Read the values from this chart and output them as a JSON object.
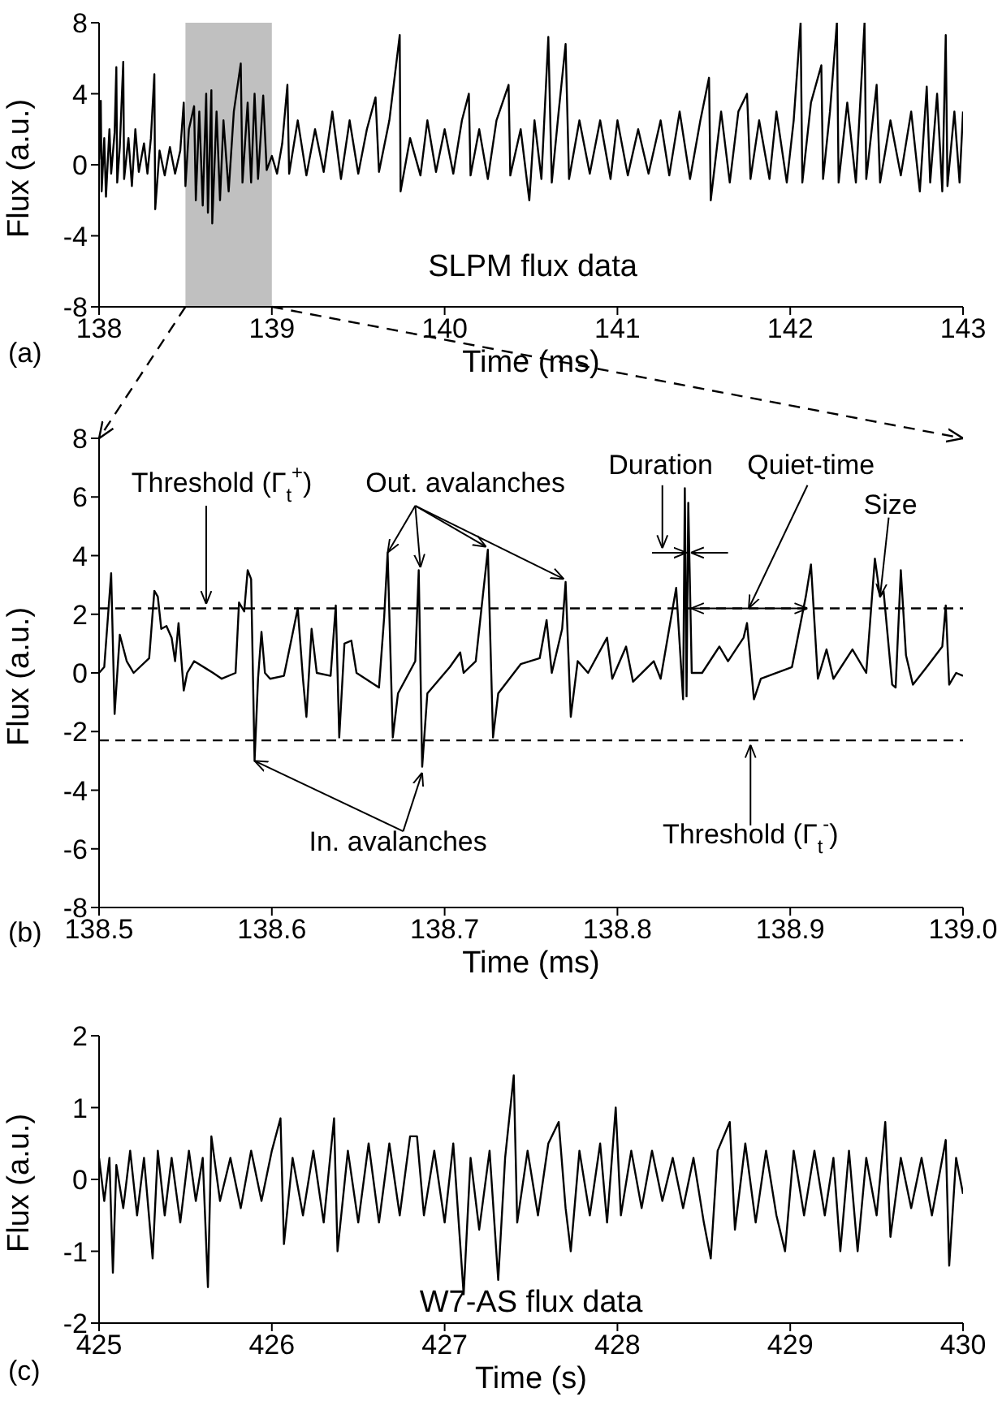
{
  "chart_data": [
    {
      "type": "line",
      "xlabel": "Time (ms)",
      "ylabel": "Flux (a.u.)",
      "color": "#000000",
      "xlim": [
        138,
        143
      ],
      "ylim": [
        -8,
        8
      ],
      "xticks": [
        138,
        139,
        140,
        141,
        142,
        143
      ],
      "yticks": [
        -8,
        -4,
        0,
        4,
        8
      ],
      "bands": [
        {
          "axis": "x",
          "from": 138.5,
          "to": 139.0,
          "color": "#c0c0c0"
        }
      ],
      "annotations": [
        "SLPM flux data",
        "(a)"
      ],
      "x": [
        138.0,
        138.01,
        138.015,
        138.03,
        138.04,
        138.06,
        138.07,
        138.09,
        138.1,
        138.105,
        138.12,
        138.14,
        138.145,
        138.17,
        138.19,
        138.21,
        138.23,
        138.26,
        138.28,
        138.3,
        138.32,
        138.325,
        138.35,
        138.38,
        138.41,
        138.44,
        138.47,
        138.49,
        138.5,
        138.52,
        138.55,
        138.56,
        138.58,
        138.6,
        138.62,
        138.63,
        138.65,
        138.655,
        138.68,
        138.7,
        138.72,
        138.75,
        138.78,
        138.82,
        138.83,
        138.86,
        138.88,
        138.9,
        138.92,
        138.95,
        138.97,
        139.0,
        139.03,
        139.06,
        139.09,
        139.1,
        139.15,
        139.2,
        139.25,
        139.3,
        139.35,
        139.4,
        139.45,
        139.5,
        139.55,
        139.6,
        139.62,
        139.68,
        139.74,
        139.745,
        139.8,
        139.86,
        139.9,
        139.95,
        140.0,
        140.05,
        140.1,
        140.14,
        140.15,
        140.2,
        140.25,
        140.3,
        140.37,
        140.38,
        140.44,
        140.49,
        140.52,
        140.56,
        140.6,
        140.62,
        140.66,
        140.7,
        140.72,
        140.78,
        140.84,
        140.9,
        140.96,
        141.0,
        141.06,
        141.12,
        141.18,
        141.25,
        141.3,
        141.36,
        141.42,
        141.48,
        141.53,
        141.54,
        141.6,
        141.65,
        141.7,
        141.75,
        141.77,
        141.82,
        141.88,
        141.92,
        141.98,
        142.02,
        142.06,
        142.07,
        142.12,
        142.18,
        142.19,
        142.23,
        142.27,
        142.28,
        142.33,
        142.38,
        142.43,
        142.44,
        142.5,
        142.52,
        142.58,
        142.64,
        142.7,
        142.75,
        142.79,
        142.81,
        142.85,
        142.88,
        142.9,
        142.91,
        142.95,
        142.98,
        143.0
      ],
      "values": [
        0.3,
        3.6,
        -1.5,
        1.5,
        -1.8,
        2.0,
        -0.5,
        1.8,
        5.5,
        -1.0,
        1.0,
        5.8,
        -0.8,
        1.5,
        -1.2,
        2.0,
        -0.4,
        1.2,
        -0.5,
        1.5,
        5.1,
        -2.5,
        0.8,
        -0.6,
        1.0,
        -0.5,
        0.8,
        3.5,
        -1.2,
        2.0,
        3.3,
        -2.0,
        3.0,
        -2.3,
        4.0,
        -2.7,
        4.2,
        -3.3,
        3.0,
        -2.0,
        2.5,
        -1.5,
        3.0,
        5.7,
        -1.0,
        3.5,
        -1.0,
        4.0,
        -0.8,
        3.9,
        -0.3,
        0.5,
        -0.5,
        1.2,
        4.5,
        -0.5,
        2.5,
        -0.6,
        2.0,
        -0.4,
        3.0,
        -0.8,
        2.5,
        -0.5,
        2.0,
        3.8,
        -0.4,
        2.5,
        7.3,
        -1.5,
        1.5,
        -0.6,
        2.5,
        -0.4,
        2.0,
        -0.5,
        2.5,
        4.0,
        -0.6,
        2.0,
        -0.8,
        2.5,
        4.5,
        -0.6,
        2.0,
        -2.0,
        2.5,
        -0.8,
        7.2,
        -1.0,
        3.0,
        6.8,
        -0.8,
        2.5,
        -0.5,
        2.5,
        -0.8,
        2.5,
        -0.6,
        2.0,
        -0.5,
        2.5,
        -0.6,
        3.0,
        -0.8,
        2.5,
        4.9,
        -2.0,
        3.0,
        -1.0,
        3.0,
        4.0,
        -0.8,
        2.5,
        -0.8,
        3.0,
        -1.0,
        2.5,
        8.0,
        -1.0,
        3.5,
        5.6,
        -0.8,
        3.0,
        8.0,
        -1.0,
        3.5,
        -1.0,
        8.0,
        -0.8,
        4.5,
        -1.0,
        2.5,
        -0.6,
        3.0,
        -1.5,
        4.4,
        -1.0,
        4.0,
        -1.5,
        7.3,
        -1.2,
        3.0,
        -1.0,
        3.0
      ]
    },
    {
      "type": "line",
      "xlabel": "Time (ms)",
      "ylabel": "Flux (a.u.)",
      "color": "#000000",
      "xlim": [
        138.5,
        139.0
      ],
      "ylim": [
        -8,
        8
      ],
      "xticks": [
        138.5,
        138.6,
        138.7,
        138.8,
        138.9,
        {
          "value": 139.0,
          "label": "139.0"
        }
      ],
      "yticks": [
        -8,
        -6,
        -4,
        -2,
        0,
        2,
        4,
        6,
        8
      ],
      "ref_lines": [
        {
          "axis": "y",
          "value": 2.2,
          "label": "Threshold (Γ$_{t}$$^{+}$)",
          "line_style": "dashed",
          "color": "#000000"
        },
        {
          "axis": "y",
          "value": -2.3,
          "label": "Threshold (Γ$_{t}$$^{-}$)",
          "line_style": "dashed",
          "color": "#000000"
        }
      ],
      "annotations": [
        {
          "text": "Out. avalanches",
          "x": 138.667,
          "y": 4.1
        },
        {
          "text": "In. avalanches",
          "x": 138.59,
          "y": -3.0
        },
        {
          "text": "Duration",
          "x": 138.84,
          "y": 4.1
        },
        {
          "text": "Quiet-time",
          "x": 138.876,
          "y": 2.2
        },
        {
          "text": "Size",
          "x": 138.952,
          "y": 2.6
        },
        "(b)"
      ],
      "x": [
        138.5,
        138.503,
        138.507,
        138.509,
        138.512,
        138.516,
        138.52,
        138.529,
        138.532,
        138.534,
        138.536,
        138.539,
        138.542,
        138.544,
        138.546,
        138.549,
        138.551,
        138.555,
        138.566,
        138.571,
        138.579,
        138.581,
        138.584,
        138.586,
        138.588,
        138.59,
        138.592,
        138.594,
        138.596,
        138.599,
        138.607,
        138.615,
        138.618,
        138.62,
        138.623,
        138.626,
        138.634,
        138.637,
        138.639,
        138.642,
        138.646,
        138.649,
        138.662,
        138.665,
        138.667,
        138.67,
        138.673,
        138.683,
        138.685,
        138.687,
        138.69,
        138.703,
        138.709,
        138.711,
        138.718,
        138.725,
        138.728,
        138.731,
        138.744,
        138.755,
        138.759,
        138.762,
        138.768,
        138.77,
        138.773,
        138.777,
        138.783,
        138.794,
        138.797,
        138.805,
        138.809,
        138.821,
        138.825,
        138.834,
        138.838,
        138.839,
        138.84,
        138.841,
        138.843,
        138.849,
        138.859,
        138.864,
        138.873,
        138.875,
        138.879,
        138.883,
        138.901,
        138.909,
        138.912,
        138.916,
        138.921,
        138.925,
        138.936,
        138.944,
        138.949,
        138.952,
        138.954,
        138.959,
        138.961,
        138.964,
        138.967,
        138.971,
        138.979,
        138.988,
        138.99,
        138.992,
        138.996,
        139.0
      ],
      "values": [
        0,
        0.2,
        3.4,
        -1.4,
        1.3,
        0.4,
        0,
        0.5,
        2.8,
        2.6,
        1.5,
        1.6,
        1.2,
        0.4,
        1.7,
        -0.6,
        0,
        0.4,
        0,
        -0.2,
        0,
        2.4,
        2.1,
        3.5,
        3.2,
        -3.0,
        -0.2,
        1.4,
        0,
        -0.2,
        -0.1,
        2.2,
        -0.2,
        -1.5,
        1.5,
        0,
        -0.1,
        2.3,
        -2.2,
        1.0,
        1.1,
        0,
        -0.5,
        1.9,
        4.1,
        -2.2,
        -0.7,
        0.4,
        3.5,
        -3.2,
        -0.7,
        0.2,
        0.7,
        0,
        0.4,
        4.2,
        -2.2,
        -0.7,
        0.3,
        0.5,
        1.8,
        0,
        1.5,
        3.1,
        -1.5,
        0.4,
        0,
        1.2,
        -0.2,
        0.9,
        -0.3,
        0.4,
        -0.2,
        2.9,
        -0.9,
        6.3,
        -0.8,
        5.8,
        0,
        0,
        0.9,
        0.4,
        1.2,
        1.7,
        -0.9,
        -0.2,
        0.2,
        2.6,
        3.7,
        -0.2,
        0.8,
        -0.2,
        0.8,
        0,
        3.9,
        2.6,
        2.8,
        -0.4,
        -0.5,
        3.5,
        0.6,
        -0.4,
        0.2,
        0.9,
        2.3,
        -0.4,
        0,
        -0.1
      ]
    },
    {
      "type": "line",
      "xlabel": "Time (s)",
      "ylabel": "Flux (a.u.)",
      "color": "#000000",
      "xlim": [
        425,
        430
      ],
      "ylim": [
        -2,
        2
      ],
      "xticks": [
        425,
        426,
        427,
        428,
        429,
        430
      ],
      "yticks": [
        -2,
        -1,
        0,
        1,
        2
      ],
      "annotations": [
        "W7-AS flux data",
        "(c)"
      ],
      "x": [
        425.0,
        425.03,
        425.06,
        425.08,
        425.1,
        425.14,
        425.18,
        425.22,
        425.26,
        425.31,
        425.34,
        425.38,
        425.42,
        425.47,
        425.52,
        425.56,
        425.6,
        425.63,
        425.65,
        425.7,
        425.76,
        425.82,
        425.88,
        425.94,
        426.0,
        426.05,
        426.07,
        426.12,
        426.18,
        426.24,
        426.3,
        426.36,
        426.38,
        426.44,
        426.5,
        426.56,
        426.62,
        426.68,
        426.74,
        426.8,
        426.84,
        426.88,
        426.94,
        427.0,
        427.05,
        427.11,
        427.15,
        427.2,
        427.26,
        427.31,
        427.35,
        427.4,
        427.42,
        427.48,
        427.54,
        427.6,
        427.66,
        427.7,
        427.73,
        427.78,
        427.84,
        427.9,
        427.94,
        427.99,
        428.02,
        428.08,
        428.14,
        428.2,
        428.26,
        428.32,
        428.38,
        428.44,
        428.5,
        428.54,
        428.58,
        428.65,
        428.68,
        428.74,
        428.8,
        428.86,
        428.92,
        428.97,
        429.02,
        429.08,
        429.14,
        429.2,
        429.25,
        429.29,
        429.34,
        429.39,
        429.44,
        429.5,
        429.55,
        429.58,
        429.64,
        429.7,
        429.76,
        429.82,
        429.9,
        429.92,
        429.96,
        430.0
      ],
      "values": [
        0.3,
        -0.3,
        0.3,
        -1.3,
        0.2,
        -0.4,
        0.4,
        -0.5,
        0.3,
        -1.1,
        0.4,
        -0.5,
        0.3,
        -0.6,
        0.4,
        -0.3,
        0.3,
        -1.5,
        0.6,
        -0.3,
        0.3,
        -0.4,
        0.4,
        -0.3,
        0.4,
        0.85,
        -0.9,
        0.3,
        -0.5,
        0.4,
        -0.6,
        0.85,
        -1.0,
        0.4,
        -0.6,
        0.5,
        -0.6,
        0.5,
        -0.5,
        0.6,
        0.6,
        -0.5,
        0.4,
        -0.6,
        0.5,
        -1.6,
        0.3,
        -0.7,
        0.4,
        -1.4,
        0.3,
        1.45,
        -0.6,
        0.4,
        -0.5,
        0.5,
        0.8,
        -0.4,
        -1.0,
        0.4,
        -0.5,
        0.5,
        -0.6,
        1.0,
        -0.5,
        0.4,
        -0.4,
        0.4,
        -0.3,
        0.3,
        -0.4,
        0.3,
        -0.6,
        -1.1,
        0.4,
        0.8,
        -0.7,
        0.5,
        -0.6,
        0.4,
        -0.5,
        -1.0,
        0.4,
        -0.5,
        0.4,
        -0.5,
        0.3,
        -1.0,
        0.4,
        -1.0,
        0.3,
        -0.5,
        0.8,
        -0.8,
        0.3,
        -0.4,
        0.3,
        -0.5,
        0.55,
        -1.2,
        0.3,
        -0.2
      ]
    }
  ]
}
